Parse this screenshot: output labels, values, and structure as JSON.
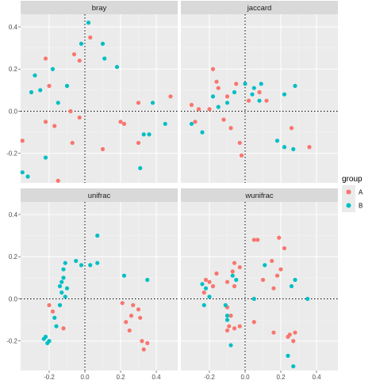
{
  "colors": {
    "A": "#F8766D",
    "B": "#00BFC4"
  },
  "legend": {
    "title": "group",
    "items": [
      "A",
      "B"
    ]
  },
  "chart_data": {
    "type": "scatter",
    "facet_titles": [
      "bray",
      "jaccard",
      "unifrac",
      "wunifrac"
    ],
    "x_ticks": [
      "-0.2",
      "0.0",
      "0.2",
      "0.4"
    ],
    "x_tick_values": [
      -0.2,
      0.0,
      0.2,
      0.4
    ],
    "y_ticks": [
      "-0.2",
      "0.0",
      "0.2",
      "0.4"
    ],
    "y_tick_values": [
      -0.2,
      0.0,
      0.2,
      0.4
    ],
    "xlim": [
      -0.36,
      0.52
    ],
    "ylim": [
      -0.34,
      0.46
    ],
    "facets": [
      {
        "name": "bray",
        "series": [
          {
            "name": "A",
            "points": [
              [
                -0.22,
                0.25
              ],
              [
                -0.06,
                0.27
              ],
              [
                -0.03,
                0.24
              ],
              [
                -0.2,
                0.12
              ],
              [
                -0.08,
                0.0
              ],
              [
                -0.22,
                -0.05
              ],
              [
                -0.17,
                -0.07
              ],
              [
                -0.03,
                -0.03
              ],
              [
                -0.35,
                -0.14
              ],
              [
                -0.15,
                -0.33
              ],
              [
                -0.07,
                -0.15
              ],
              [
                0.1,
                -0.18
              ],
              [
                0.2,
                -0.05
              ],
              [
                0.22,
                -0.06
              ],
              [
                0.3,
                -0.15
              ],
              [
                0.3,
                0.04
              ],
              [
                0.48,
                0.07
              ],
              [
                0.03,
                0.35
              ]
            ]
          },
          {
            "name": "B",
            "points": [
              [
                0.02,
                0.42
              ],
              [
                -0.02,
                0.32
              ],
              [
                0.1,
                0.32
              ],
              [
                0.11,
                0.25
              ],
              [
                -0.28,
                0.17
              ],
              [
                -0.18,
                0.2
              ],
              [
                -0.3,
                0.09
              ],
              [
                -0.25,
                0.1
              ],
              [
                -0.1,
                0.12
              ],
              [
                -0.15,
                0.04
              ],
              [
                0.18,
                0.21
              ],
              [
                0.38,
                0.04
              ],
              [
                0.45,
                -0.06
              ],
              [
                0.33,
                -0.11
              ],
              [
                0.36,
                -0.11
              ],
              [
                0.31,
                -0.27
              ],
              [
                -0.22,
                -0.22
              ],
              [
                -0.35,
                -0.29
              ],
              [
                -0.32,
                -0.31
              ]
            ]
          }
        ]
      },
      {
        "name": "jaccard",
        "series": [
          {
            "name": "A",
            "points": [
              [
                -0.18,
                0.2
              ],
              [
                -0.16,
                0.14
              ],
              [
                -0.15,
                0.11
              ],
              [
                -0.1,
                0.07
              ],
              [
                -0.05,
                0.13
              ],
              [
                -0.3,
                0.03
              ],
              [
                -0.26,
                0.01
              ],
              [
                -0.28,
                -0.05
              ],
              [
                -0.2,
                0.01
              ],
              [
                -0.12,
                -0.04
              ],
              [
                -0.08,
                -0.08
              ],
              [
                -0.03,
                -0.15
              ],
              [
                -0.02,
                -0.21
              ],
              [
                0.02,
                0.05
              ],
              [
                0.08,
                0.09
              ],
              [
                0.12,
                0.05
              ],
              [
                0.26,
                -0.08
              ],
              [
                0.36,
                -0.17
              ]
            ]
          },
          {
            "name": "B",
            "points": [
              [
                0.0,
                0.13
              ],
              [
                0.05,
                0.11
              ],
              [
                0.09,
                0.13
              ],
              [
                0.22,
                0.08
              ],
              [
                0.28,
                0.12
              ],
              [
                -0.06,
                0.09
              ],
              [
                -0.18,
                0.07
              ],
              [
                -0.1,
                0.04
              ],
              [
                -0.15,
                0.02
              ],
              [
                -0.3,
                -0.06
              ],
              [
                -0.24,
                -0.1
              ],
              [
                0.04,
                0.08
              ],
              [
                0.08,
                0.05
              ],
              [
                0.18,
                -0.14
              ],
              [
                0.22,
                -0.17
              ],
              [
                0.27,
                -0.18
              ]
            ]
          }
        ]
      },
      {
        "name": "unifrac",
        "series": [
          {
            "name": "A",
            "points": [
              [
                0.21,
                -0.02
              ],
              [
                0.27,
                -0.03
              ],
              [
                0.3,
                -0.05
              ],
              [
                0.26,
                -0.08
              ],
              [
                0.31,
                -0.09
              ],
              [
                0.23,
                -0.11
              ],
              [
                0.25,
                -0.15
              ],
              [
                0.32,
                -0.2
              ],
              [
                0.35,
                -0.21
              ],
              [
                0.33,
                -0.24
              ],
              [
                -0.2,
                -0.03
              ],
              [
                -0.18,
                -0.06
              ],
              [
                -0.12,
                -0.14
              ],
              [
                -0.14,
                -0.03
              ]
            ]
          },
          {
            "name": "B",
            "points": [
              [
                0.03,
                0.16
              ],
              [
                0.07,
                0.3
              ],
              [
                0.07,
                0.17
              ],
              [
                -0.02,
                0.16
              ],
              [
                -0.05,
                0.18
              ],
              [
                -0.11,
                0.17
              ],
              [
                -0.12,
                0.14
              ],
              [
                -0.12,
                0.1
              ],
              [
                -0.13,
                0.08
              ],
              [
                -0.1,
                0.05
              ],
              [
                -0.14,
                0.06
              ],
              [
                -0.13,
                0.03
              ],
              [
                -0.11,
                0.01
              ],
              [
                -0.14,
                -0.03
              ],
              [
                -0.17,
                -0.09
              ],
              [
                -0.16,
                -0.13
              ],
              [
                -0.22,
                -0.18
              ],
              [
                -0.23,
                -0.19
              ],
              [
                -0.2,
                -0.2
              ],
              [
                -0.21,
                -0.21
              ],
              [
                0.22,
                0.11
              ],
              [
                0.35,
                0.09
              ]
            ]
          }
        ]
      },
      {
        "name": "wunifrac",
        "series": [
          {
            "name": "A",
            "points": [
              [
                0.05,
                0.28
              ],
              [
                0.07,
                0.28
              ],
              [
                0.19,
                0.29
              ],
              [
                0.22,
                0.24
              ],
              [
                0.15,
                0.18
              ],
              [
                0.2,
                0.14
              ],
              [
                0.1,
                0.09
              ],
              [
                0.18,
                0.11
              ],
              [
                -0.06,
                0.17
              ],
              [
                -0.03,
                0.15
              ],
              [
                -0.07,
                0.13
              ],
              [
                -0.16,
                0.12
              ],
              [
                -0.22,
                0.09
              ],
              [
                -0.2,
                0.08
              ],
              [
                -0.18,
                0.06
              ],
              [
                -0.1,
                0.08
              ],
              [
                -0.06,
                0.06
              ],
              [
                -0.23,
                0.03
              ],
              [
                -0.1,
                -0.04
              ],
              [
                -0.08,
                -0.08
              ],
              [
                -0.06,
                -0.14
              ],
              [
                -0.09,
                -0.13
              ],
              [
                -0.1,
                -0.15
              ],
              [
                -0.03,
                -0.13
              ],
              [
                0.05,
                -0.11
              ],
              [
                0.16,
                -0.16
              ],
              [
                0.25,
                -0.17
              ],
              [
                0.28,
                -0.16
              ],
              [
                0.27,
                -0.2
              ],
              [
                0.24,
                -0.18
              ],
              [
                0.16,
                0.05
              ]
            ]
          },
          {
            "name": "B",
            "points": [
              [
                0.11,
                0.16
              ],
              [
                0.28,
                0.09
              ],
              [
                0.26,
                0.06
              ],
              [
                -0.07,
                0.11
              ],
              [
                -0.05,
                0.09
              ],
              [
                -0.24,
                0.07
              ],
              [
                -0.22,
                0.05
              ],
              [
                -0.23,
                -0.03
              ],
              [
                -0.2,
                0.01
              ],
              [
                -0.11,
                -0.03
              ],
              [
                -0.1,
                -0.08
              ],
              [
                -0.1,
                -0.1
              ],
              [
                0.05,
                0.0
              ],
              [
                0.35,
                0.0
              ],
              [
                0.24,
                -0.27
              ],
              [
                0.27,
                -0.32
              ],
              [
                -0.08,
                -0.22
              ]
            ]
          }
        ]
      }
    ]
  }
}
